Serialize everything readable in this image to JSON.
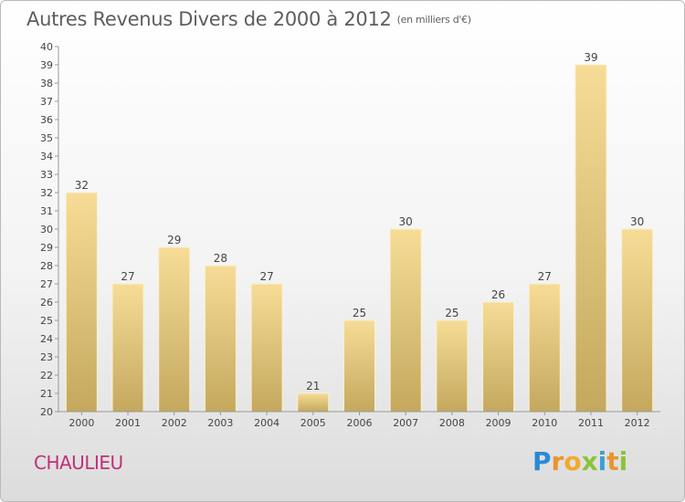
{
  "header": {
    "title": "Autres Revenus Divers de 2000 à 2012",
    "subtitle": "(en milliers d'€)"
  },
  "place": "CHAULIEU",
  "brand": {
    "letters": [
      "P",
      "r",
      "o",
      "x",
      "i",
      "t",
      "i"
    ],
    "letter_colors": [
      "#2a8ad4",
      "#e8962e",
      "#f0a92e",
      "#8ac43a",
      "#3aa0d8",
      "#e8962e",
      "#8ac43a"
    ]
  },
  "colors": {
    "bar_light": "#f6dc96",
    "bar_dark": "#c4a85e",
    "bar_edge": "#f9efcf",
    "axis": "#999999",
    "grid_tick": "#bbbbbb",
    "text": "#444444"
  },
  "chart_data": {
    "type": "bar",
    "title": "Autres Revenus Divers de 2000 à 2012",
    "xlabel": "",
    "ylabel": "",
    "ylim": [
      20,
      40
    ],
    "yticks": [
      20,
      21,
      22,
      23,
      24,
      25,
      26,
      27,
      28,
      29,
      30,
      31,
      32,
      33,
      34,
      35,
      36,
      37,
      38,
      39,
      40
    ],
    "categories": [
      "2000",
      "2001",
      "2002",
      "2003",
      "2004",
      "2005",
      "2006",
      "2007",
      "2008",
      "2009",
      "2010",
      "2011",
      "2012"
    ],
    "values": [
      32,
      27,
      29,
      28,
      27,
      21,
      25,
      30,
      25,
      26,
      27,
      39,
      30
    ],
    "grid": false,
    "data_labels": true
  }
}
